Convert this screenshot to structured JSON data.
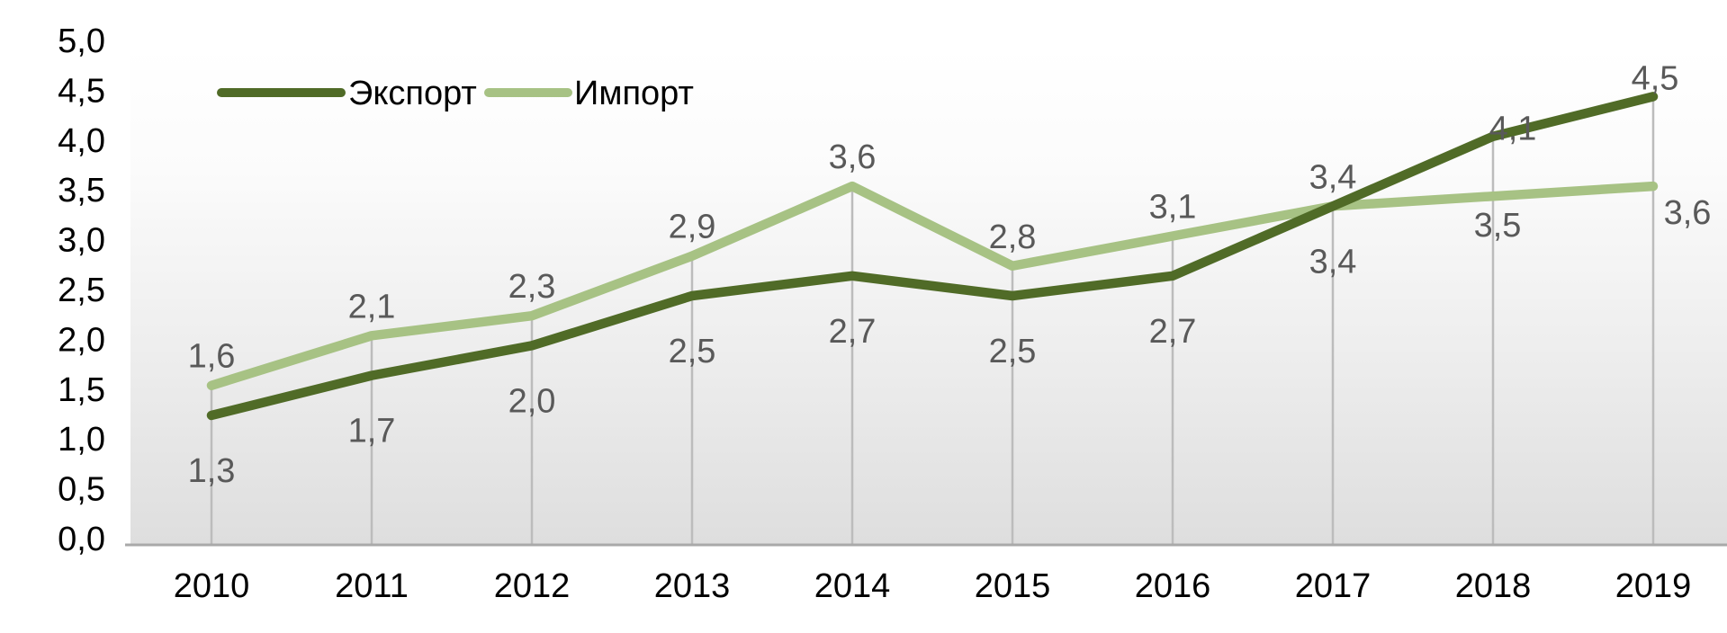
{
  "chart_data": {
    "type": "line",
    "categories": [
      "2010",
      "2011",
      "2012",
      "2013",
      "2014",
      "2015",
      "2016",
      "2017",
      "2018",
      "2019"
    ],
    "series": [
      {
        "name": "Экспорт",
        "values": [
          1.3,
          1.7,
          2.0,
          2.5,
          2.7,
          2.5,
          2.7,
          3.4,
          4.1,
          4.5
        ],
        "labels": [
          "1,3",
          "1,7",
          "2,0",
          "2,5",
          "2,7",
          "2,5",
          "2,7",
          "3,4",
          "4,1",
          "4,5"
        ],
        "color": "#506B27"
      },
      {
        "name": "Импорт",
        "values": [
          1.6,
          2.1,
          2.3,
          2.9,
          3.6,
          2.8,
          3.1,
          3.4,
          3.5,
          3.6
        ],
        "labels": [
          "1,6",
          "2,1",
          "2,3",
          "2,9",
          "3,6",
          "2,8",
          "3,1",
          "3,4",
          "3,5",
          "3,6"
        ],
        "color": "#A7C284"
      }
    ],
    "y_axis": {
      "min": 0,
      "max": 5,
      "step": 0.5,
      "tick_labels": [
        "0,0",
        "0,5",
        "1,0",
        "1,5",
        "2,0",
        "2,5",
        "3,0",
        "3,5",
        "4,0",
        "4,5",
        "5,0"
      ]
    },
    "legend": {
      "position": "top",
      "entries": [
        "Экспорт",
        "Импорт"
      ]
    },
    "layout_hints": {
      "grid": "vertical-drop-lines-only",
      "plot_background": "vertical gradient, white to light gray",
      "data_label_decimal_separator": ","
    },
    "colors": {
      "export_line": "#506B27",
      "import_line": "#A7C284",
      "data_label": "#595959",
      "axis_label": "#000000",
      "drop_line": "#bcbcbc",
      "axis_line": "#a9a9a9",
      "plot_bg_top": "#ffffff",
      "plot_bg_bottom": "#dedede"
    }
  }
}
